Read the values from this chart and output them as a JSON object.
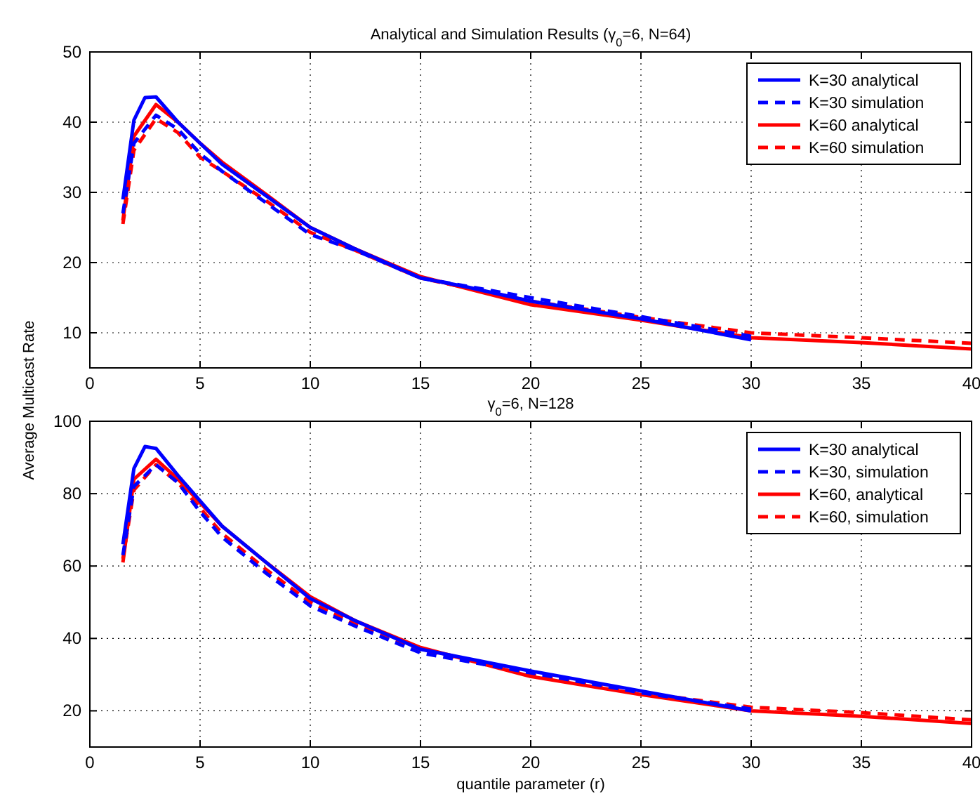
{
  "chart_data": [
    {
      "type": "line",
      "title": "Analytical and Simulation Results (γ$_{0}$=6, N=64)",
      "ylabel": "Average Multicast Rate",
      "xlim": [
        0,
        40
      ],
      "xticks": [
        0,
        5,
        10,
        15,
        20,
        25,
        30,
        35,
        40
      ],
      "ylim": [
        5,
        50
      ],
      "yticks": [
        10,
        20,
        30,
        40,
        50
      ],
      "grid": true,
      "legend": "top right",
      "series": [
        {
          "name": "K=30 analytical",
          "color": "#0000ff",
          "line_style": "solid",
          "x": [
            1.5,
            2,
            2.5,
            3,
            4,
            5,
            6,
            8,
            10,
            12,
            15,
            17,
            20,
            25,
            30
          ],
          "values": [
            29,
            40.3,
            43.5,
            43.6,
            40,
            37,
            34,
            29.5,
            25,
            22,
            17.8,
            16.6,
            14.5,
            12,
            9
          ]
        },
        {
          "name": "K=30 simulation",
          "color": "#0000ff",
          "line_style": "dashed",
          "x": [
            1.5,
            2,
            3,
            4,
            5,
            6,
            8,
            10,
            12,
            15,
            20,
            25,
            30
          ],
          "values": [
            27,
            37,
            41,
            39,
            35.5,
            33,
            28.5,
            24,
            21.8,
            17.8,
            15,
            12.3,
            9.5
          ]
        },
        {
          "name": "K=60 analytical",
          "color": "#ff0000",
          "line_style": "solid",
          "x": [
            1.5,
            2,
            3,
            4,
            5,
            6,
            8,
            10,
            12,
            15,
            20,
            25,
            30,
            35,
            40
          ],
          "values": [
            26,
            38,
            42.5,
            40,
            37,
            34.3,
            29.7,
            25,
            22,
            18,
            14,
            11.8,
            9.3,
            8.6,
            7.7
          ]
        },
        {
          "name": "K=60 simulation",
          "color": "#ff0000",
          "line_style": "dashed",
          "x": [
            1.5,
            2,
            3,
            4,
            5,
            6,
            8,
            10,
            12,
            15,
            20,
            25,
            30,
            35,
            40
          ],
          "values": [
            25.5,
            36,
            40.5,
            38.5,
            35,
            33,
            28.8,
            24.3,
            21.8,
            17.8,
            14.5,
            12.2,
            10,
            9.3,
            8.5
          ]
        }
      ]
    },
    {
      "type": "line",
      "title": "γ$_{0}$=6, N=128",
      "xlabel": "quantile parameter (r)",
      "xlim": [
        0,
        40
      ],
      "xticks": [
        0,
        5,
        10,
        15,
        20,
        25,
        30,
        35,
        40
      ],
      "ylim": [
        10,
        100
      ],
      "yticks": [
        20,
        40,
        60,
        80,
        100
      ],
      "grid": true,
      "legend": "top right",
      "series": [
        {
          "name": "K=30 analytical",
          "color": "#0000ff",
          "line_style": "solid",
          "x": [
            1.5,
            2,
            2.5,
            3,
            4,
            5,
            6,
            8,
            10,
            12,
            15,
            20,
            25,
            30
          ],
          "values": [
            66,
            87,
            93,
            92.5,
            85,
            78,
            71,
            61,
            51,
            45,
            37,
            31,
            25.5,
            20
          ]
        },
        {
          "name": "K=30, simulation",
          "color": "#0000ff",
          "line_style": "dashed",
          "x": [
            1.5,
            2,
            3,
            4,
            5,
            6,
            8,
            10,
            12,
            15,
            20,
            25,
            30
          ],
          "values": [
            63,
            82,
            88,
            83,
            75,
            68,
            58,
            49,
            43.5,
            36,
            30.5,
            25,
            20.5
          ]
        },
        {
          "name": "K=60, analytical",
          "color": "#ff0000",
          "line_style": "solid",
          "x": [
            1.5,
            2,
            3,
            4,
            5,
            6,
            8,
            10,
            12,
            15,
            20,
            25,
            30,
            35,
            40
          ],
          "values": [
            61,
            84,
            89.5,
            84,
            77.5,
            71,
            61,
            51.5,
            45,
            37.5,
            29.5,
            24.5,
            20,
            18.5,
            16.5
          ]
        },
        {
          "name": "K=60, simulation",
          "color": "#ff0000",
          "line_style": "dashed",
          "x": [
            1.5,
            2,
            3,
            4,
            5,
            6,
            8,
            10,
            12,
            15,
            20,
            25,
            30,
            35,
            40
          ],
          "values": [
            62,
            81,
            88,
            83,
            76,
            69,
            59,
            50,
            44,
            37,
            30,
            25,
            21,
            19.5,
            17.5
          ]
        }
      ]
    }
  ]
}
